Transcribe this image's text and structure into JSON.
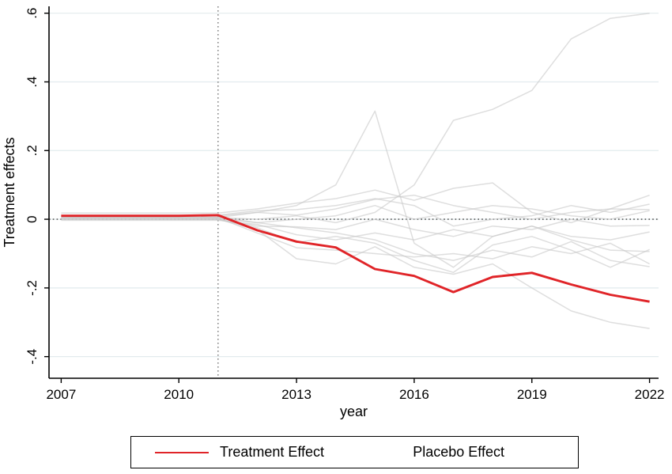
{
  "figure": {
    "xlabel": "year",
    "ylabel": "Treatment effects"
  },
  "colors": {
    "background": "#ffffff",
    "axis": "#000000",
    "gridline": "#e2ebee",
    "zero_dotted_line": "#3a3a3a",
    "vertical_dotted_line": "#707070",
    "treatment_red": "#e02428",
    "placebo_gray": "#c9c9c9"
  },
  "chart_data": {
    "type": "line",
    "title": "",
    "xlabel": "year",
    "ylabel": "Treatment effects",
    "x_ticks": [
      2007,
      2010,
      2013,
      2016,
      2019,
      2022
    ],
    "x_tick_labels": [
      "2007",
      "2010",
      "2013",
      "2016",
      "2019",
      "2022"
    ],
    "y_tick_labels": [
      ".6",
      ".4",
      ".2",
      "0",
      "-.2",
      "-.4"
    ],
    "y_tick_values": [
      0.6,
      0.4,
      0.2,
      0,
      -0.2,
      -0.4
    ],
    "xlim": [
      2006.69,
      2022.23
    ],
    "ylim": [
      -0.463,
      0.62
    ],
    "grid": "horizontal",
    "legend_position": "bottom-outside",
    "reference_lines": {
      "vertical_x": 2011,
      "horizontal_y": 0
    },
    "x": [
      2007,
      2008,
      2009,
      2010,
      2011,
      2012,
      2013,
      2014,
      2015,
      2016,
      2017,
      2018,
      2019,
      2020,
      2021,
      2022
    ],
    "series": [
      {
        "name": "Placebo 1",
        "role": "placebo",
        "values": [
          0.005,
          0.005,
          0.006,
          0.006,
          0.005,
          0.0,
          0.01,
          -0.01,
          0.02,
          0.1,
          0.288,
          0.32,
          0.375,
          0.525,
          0.585,
          0.6
        ]
      },
      {
        "name": "Placebo 2",
        "role": "placebo",
        "values": [
          0.008,
          0.008,
          0.008,
          0.008,
          0.01,
          0.02,
          0.04,
          0.1,
          0.315,
          -0.07,
          -0.14,
          -0.05,
          -0.02,
          -0.06,
          -0.09,
          -0.094
        ]
      },
      {
        "name": "Placebo 3",
        "role": "placebo",
        "values": [
          0.0,
          0.0,
          0.0,
          0.0,
          0.0,
          -0.03,
          -0.115,
          -0.13,
          -0.08,
          -0.14,
          -0.16,
          -0.13,
          -0.2,
          -0.267,
          -0.3,
          -0.318
        ]
      },
      {
        "name": "Placebo 4",
        "role": "placebo",
        "values": [
          0.018,
          0.018,
          0.018,
          0.018,
          0.018,
          0.03,
          0.047,
          0.06,
          0.085,
          0.055,
          0.09,
          0.106,
          0.02,
          -0.01,
          0.03,
          0.07
        ]
      },
      {
        "name": "Placebo 5",
        "role": "placebo",
        "values": [
          0.012,
          0.012,
          0.012,
          0.012,
          0.012,
          0.025,
          0.028,
          0.04,
          0.06,
          0.04,
          -0.02,
          0.0,
          0.01,
          0.04,
          0.02,
          0.044
        ]
      },
      {
        "name": "Placebo 6",
        "role": "placebo",
        "values": [
          0.005,
          0.005,
          0.005,
          0.005,
          0.005,
          0.02,
          0.012,
          0.03,
          0.058,
          0.07,
          0.04,
          0.02,
          0.0,
          0.02,
          0.03,
          0.028
        ]
      },
      {
        "name": "Placebo 7",
        "role": "placebo",
        "values": [
          0.002,
          0.002,
          0.002,
          0.002,
          0.002,
          -0.01,
          0.0,
          0.01,
          0.04,
          0.0,
          0.02,
          0.04,
          0.03,
          0.01,
          0.0,
          0.025
        ]
      },
      {
        "name": "Placebo 8",
        "role": "placebo",
        "values": [
          0.0,
          0.0,
          0.0,
          0.0,
          0.0,
          -0.02,
          -0.022,
          -0.03,
          0.0,
          -0.03,
          -0.05,
          -0.02,
          -0.03,
          0.0,
          -0.02,
          -0.018
        ]
      },
      {
        "name": "Placebo 9",
        "role": "placebo",
        "values": [
          -0.003,
          -0.003,
          -0.003,
          -0.003,
          -0.003,
          -0.015,
          -0.045,
          -0.06,
          -0.04,
          -0.06,
          -0.03,
          -0.05,
          -0.02,
          -0.05,
          -0.06,
          -0.037
        ]
      },
      {
        "name": "Placebo 10",
        "role": "placebo",
        "values": [
          0.0,
          0.0,
          0.0,
          0.0,
          0.0,
          -0.025,
          -0.068,
          -0.05,
          -0.07,
          -0.12,
          -0.155,
          -0.075,
          -0.05,
          -0.09,
          -0.14,
          -0.088
        ]
      },
      {
        "name": "Placebo 11",
        "role": "placebo",
        "values": [
          0.004,
          0.004,
          0.004,
          0.004,
          0.004,
          -0.04,
          -0.083,
          -0.09,
          -0.1,
          -0.11,
          -0.1,
          -0.115,
          -0.08,
          -0.1,
          -0.07,
          -0.13
        ]
      },
      {
        "name": "Placebo 12",
        "role": "placebo",
        "values": [
          0.006,
          0.006,
          0.006,
          0.006,
          0.006,
          -0.01,
          -0.025,
          -0.04,
          -0.06,
          -0.1,
          -0.12,
          -0.09,
          -0.11,
          -0.065,
          -0.12,
          -0.138
        ]
      },
      {
        "name": "Treatment Effect",
        "role": "treatment",
        "values": [
          0.01,
          0.01,
          0.01,
          0.01,
          0.012,
          -0.032,
          -0.065,
          -0.082,
          -0.145,
          -0.165,
          -0.212,
          -0.168,
          -0.156,
          -0.19,
          -0.22,
          -0.24
        ]
      }
    ],
    "legend": [
      {
        "label": "Treatment Effect",
        "color": "#e02428"
      },
      {
        "label": "Placebo Effect",
        "color": "#c9c9c9"
      }
    ]
  }
}
